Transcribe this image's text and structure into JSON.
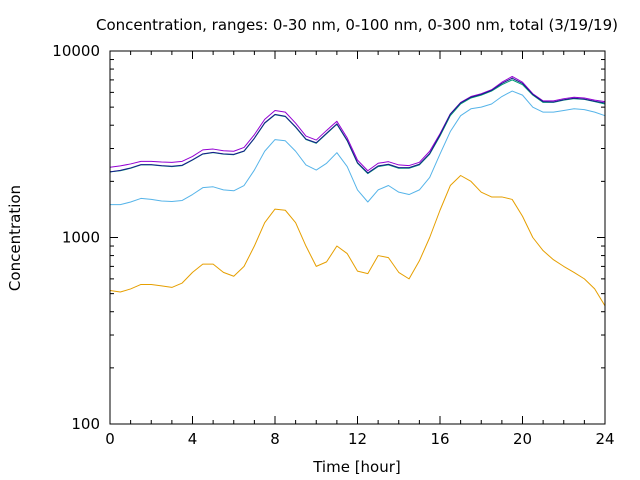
{
  "chart_data": {
    "type": "line",
    "title": "Concentration, ranges: 0-30 nm, 0-100 nm, 0-300 nm, total (3/19/19)",
    "xlabel": "Time [hour]",
    "ylabel": "Concentration",
    "xlim": [
      0,
      24
    ],
    "ylim": [
      100,
      10000
    ],
    "yscale": "log",
    "grid": false,
    "x_ticks": [
      0,
      4,
      8,
      12,
      16,
      20,
      24
    ],
    "x_tick_labels": [
      "0",
      "4",
      "8",
      "12",
      "16",
      "20",
      "24"
    ],
    "y_ticks": [
      100,
      1000,
      10000
    ],
    "y_tick_labels": [
      "100",
      "1000",
      "10000"
    ],
    "x": [
      0,
      0.5,
      1,
      1.5,
      2,
      2.5,
      3,
      3.5,
      4,
      4.5,
      5,
      5.5,
      6,
      6.5,
      7,
      7.5,
      8,
      8.5,
      9,
      9.5,
      10,
      10.5,
      11,
      11.5,
      12,
      12.5,
      13,
      13.5,
      14,
      14.5,
      15,
      15.5,
      16,
      16.5,
      17,
      17.5,
      18,
      18.5,
      19,
      19.5,
      20,
      20.5,
      21,
      21.5,
      22,
      22.5,
      23,
      23.5,
      24
    ],
    "series": [
      {
        "color": "#e69f00",
        "values": [
          520,
          510,
          530,
          560,
          560,
          550,
          540,
          570,
          650,
          720,
          720,
          650,
          620,
          700,
          900,
          1200,
          1420,
          1400,
          1200,
          900,
          700,
          740,
          900,
          820,
          660,
          640,
          800,
          780,
          650,
          600,
          750,
          1000,
          1400,
          1900,
          2150,
          2000,
          1750,
          1650,
          1650,
          1600,
          1300,
          1000,
          850,
          760,
          700,
          650,
          600,
          530,
          430
        ]
      },
      {
        "color": "#56b4e9",
        "values": [
          1500,
          1500,
          1550,
          1620,
          1600,
          1570,
          1560,
          1580,
          1700,
          1850,
          1870,
          1800,
          1780,
          1900,
          2300,
          2900,
          3350,
          3300,
          2900,
          2450,
          2300,
          2500,
          2850,
          2400,
          1800,
          1550,
          1800,
          1900,
          1750,
          1700,
          1800,
          2100,
          2800,
          3700,
          4500,
          4900,
          5000,
          5200,
          5700,
          6100,
          5800,
          5000,
          4700,
          4700,
          4800,
          4900,
          4850,
          4700,
          4500
        ]
      },
      {
        "color": "#009e73",
        "values": [
          2250,
          2280,
          2350,
          2450,
          2450,
          2420,
          2400,
          2430,
          2600,
          2800,
          2850,
          2800,
          2780,
          2900,
          3400,
          4100,
          4550,
          4450,
          3900,
          3350,
          3200,
          3600,
          4050,
          3300,
          2500,
          2200,
          2400,
          2450,
          2350,
          2350,
          2450,
          2800,
          3500,
          4500,
          5200,
          5600,
          5800,
          6100,
          6600,
          7000,
          6600,
          5800,
          5300,
          5300,
          5450,
          5550,
          5500,
          5350,
          5200
        ]
      },
      {
        "color": "#9400d3",
        "values": [
          2380,
          2420,
          2480,
          2560,
          2560,
          2540,
          2530,
          2560,
          2720,
          2950,
          2980,
          2920,
          2900,
          3040,
          3560,
          4300,
          4800,
          4700,
          4100,
          3500,
          3330,
          3750,
          4200,
          3420,
          2600,
          2280,
          2500,
          2550,
          2450,
          2430,
          2530,
          2900,
          3600,
          4600,
          5300,
          5700,
          5900,
          6200,
          6800,
          7300,
          6800,
          5900,
          5400,
          5400,
          5550,
          5650,
          5600,
          5450,
          5350
        ]
      },
      {
        "color": "#1a1a8c",
        "values": [
          2250,
          2290,
          2360,
          2460,
          2460,
          2430,
          2410,
          2440,
          2610,
          2810,
          2860,
          2810,
          2790,
          2910,
          3410,
          4120,
          4570,
          4470,
          3920,
          3370,
          3220,
          3620,
          4070,
          3320,
          2520,
          2220,
          2420,
          2470,
          2370,
          2370,
          2470,
          2820,
          3550,
          4580,
          5270,
          5650,
          5850,
          6150,
          6700,
          7150,
          6700,
          5850,
          5350,
          5330,
          5480,
          5580,
          5520,
          5380,
          5260
        ]
      }
    ]
  }
}
